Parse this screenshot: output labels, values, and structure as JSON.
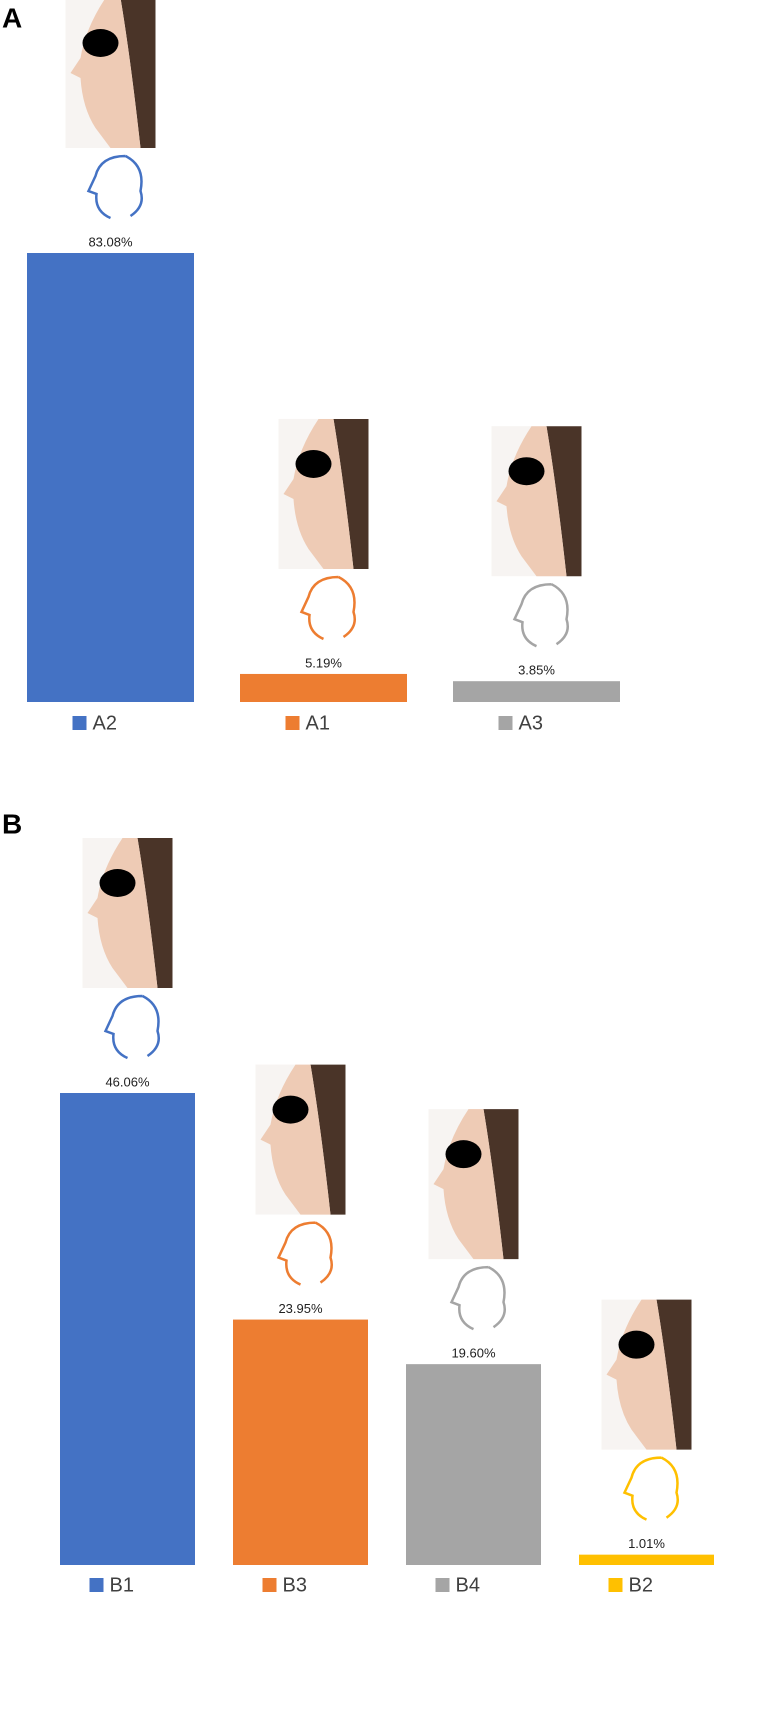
{
  "chart_data": [
    {
      "type": "bar",
      "panel_label": "A",
      "categories": [
        "A2",
        "A1",
        "A3"
      ],
      "values": [
        83.08,
        5.19,
        3.85
      ],
      "value_labels": [
        "83.08%",
        "5.19%",
        "3.85%"
      ],
      "colors": [
        "#4472c4",
        "#ed7d31",
        "#a5a5a5"
      ]
    },
    {
      "type": "bar",
      "panel_label": "B",
      "categories": [
        "B1",
        "B3",
        "B4",
        "B2"
      ],
      "values": [
        46.06,
        23.95,
        19.6,
        1.01
      ],
      "value_labels": [
        "46.06%",
        "23.95%",
        "19.60%",
        "1.01%"
      ],
      "colors": [
        "#4472c4",
        "#ed7d31",
        "#a5a5a5",
        "#ffc000"
      ]
    }
  ]
}
